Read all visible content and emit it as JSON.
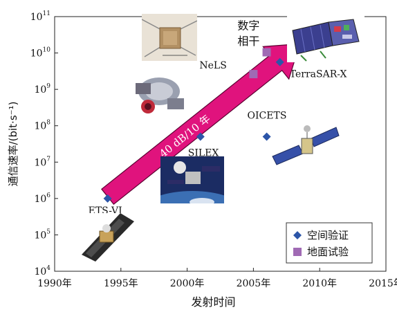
{
  "chart_data": {
    "type": "scatter",
    "title": "",
    "xlabel": "发射时间",
    "ylabel": "通信速率/(bit·s⁻¹)",
    "xlim": [
      1990,
      2015
    ],
    "ylim_exp": [
      4,
      11
    ],
    "log_y": true,
    "x_ticks": [
      {
        "value": 1990,
        "label": "1990年"
      },
      {
        "value": 1995,
        "label": "1995年"
      },
      {
        "value": 2000,
        "label": "2000年"
      },
      {
        "value": 2005,
        "label": "2005年"
      },
      {
        "value": 2010,
        "label": "2010年"
      },
      {
        "value": 2015,
        "label": "2015年"
      }
    ],
    "y_ticks": [
      {
        "exp": 4,
        "base": "10",
        "sup": "4"
      },
      {
        "exp": 5,
        "base": "10",
        "sup": "5"
      },
      {
        "exp": 6,
        "base": "10",
        "sup": "6"
      },
      {
        "exp": 7,
        "base": "10",
        "sup": "7"
      },
      {
        "exp": 8,
        "base": "10",
        "sup": "8"
      },
      {
        "exp": 9,
        "base": "10",
        "sup": "9"
      },
      {
        "exp": 10,
        "base": "10",
        "sup": "10"
      },
      {
        "exp": 11,
        "base": "10",
        "sup": "11"
      }
    ],
    "series": [
      {
        "name": "空间验证",
        "marker": "diamond",
        "color": "#2c55a8",
        "points": [
          {
            "x": 1994.0,
            "y_exp": 6.0,
            "label": "ETS-VI"
          },
          {
            "x": 2001.0,
            "y_exp": 7.7,
            "label": "SILEX"
          },
          {
            "x": 2006.0,
            "y_exp": 7.7,
            "label": "OICETS"
          },
          {
            "x": 2007.0,
            "y_exp": 9.75,
            "label": "TerraSAR-X"
          }
        ]
      },
      {
        "name": "地面试验",
        "marker": "square",
        "color": "#a06ab4",
        "points": [
          {
            "x": 2005.0,
            "y_exp": 9.42,
            "label": "NeLS"
          },
          {
            "x": 2006.0,
            "y_exp": 10.02,
            "label": "数字相干"
          }
        ]
      }
    ],
    "trend": {
      "label": "40 dB/10 年",
      "color": "#e0137d",
      "from": {
        "x": 1994.0,
        "y_exp": 6.05
      },
      "to": {
        "x": 2008.5,
        "y_exp": 10.25
      }
    },
    "extra_labels": [
      {
        "text": "数字",
        "x": 2003.8,
        "y_exp": 10.65
      },
      {
        "text": "相干",
        "x": 2003.8,
        "y_exp": 10.22
      }
    ],
    "legend": {
      "position": "bottom-right",
      "entries": [
        {
          "name": "空间验证",
          "marker": "diamond",
          "color": "#2c55a8"
        },
        {
          "name": "地面试验",
          "marker": "square",
          "color": "#a06ab4"
        }
      ]
    },
    "grid": false
  }
}
